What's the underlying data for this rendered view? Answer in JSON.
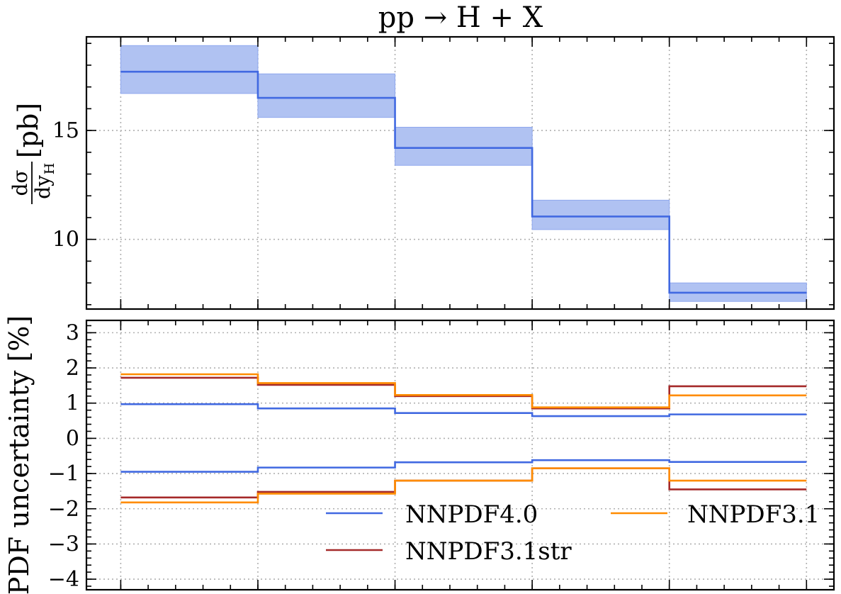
{
  "chart_data": [
    {
      "type": "line",
      "title": "pp → H + X",
      "ylabel_main": "dσ",
      "ylabel_den": "dy",
      "ylabel_sub": "H",
      "ylabel_unit": "[pb]",
      "bin_edges": [
        0,
        1,
        2,
        3,
        4,
        5
      ],
      "xlim": [
        -0.25,
        5.2
      ],
      "ylim": [
        6.8,
        19.3
      ],
      "yticks": [
        10,
        15
      ],
      "ytick_labels": [
        "10",
        "15"
      ],
      "grid": true,
      "series": [
        {
          "values": [
            17.7,
            16.5,
            14.2,
            11.05,
            7.55
          ],
          "band_low": [
            16.7,
            15.6,
            13.4,
            10.45,
            7.15
          ],
          "band_high": [
            18.9,
            17.6,
            15.15,
            11.8,
            8.0
          ],
          "color": "#4169e1",
          "band_color": "#b0c2f2"
        }
      ]
    },
    {
      "type": "line",
      "ylabel": "PDF uncertainty [%]",
      "bin_edges": [
        0,
        1,
        2,
        3,
        4,
        5
      ],
      "xlim": [
        -0.25,
        5.2
      ],
      "ylim": [
        -4.3,
        3.35
      ],
      "yticks": [
        -4,
        -3,
        -2,
        -1,
        0,
        1,
        2,
        3
      ],
      "ytick_labels": [
        "−4",
        "−3",
        "−2",
        "−1",
        "0",
        "1",
        "2",
        "3"
      ],
      "grid": true,
      "legend_position": "bottom-right",
      "series": [
        {
          "name": "NNPDF4.0",
          "color": "#4169e1",
          "upper": [
            0.97,
            0.85,
            0.72,
            0.63,
            0.68
          ],
          "lower": [
            -0.95,
            -0.83,
            -0.68,
            -0.62,
            -0.67
          ]
        },
        {
          "name": "NNPDF3.1",
          "color": "#ff8c00",
          "upper": [
            1.82,
            1.57,
            1.23,
            0.88,
            1.22
          ],
          "lower": [
            -1.82,
            -1.57,
            -1.2,
            -0.85,
            -1.2
          ]
        },
        {
          "name": "NNPDF3.1str",
          "color": "#a52a2a",
          "upper": [
            1.72,
            1.52,
            1.2,
            0.85,
            1.48
          ],
          "lower": [
            -1.68,
            -1.52,
            -1.2,
            -0.85,
            -1.45
          ]
        }
      ]
    }
  ]
}
